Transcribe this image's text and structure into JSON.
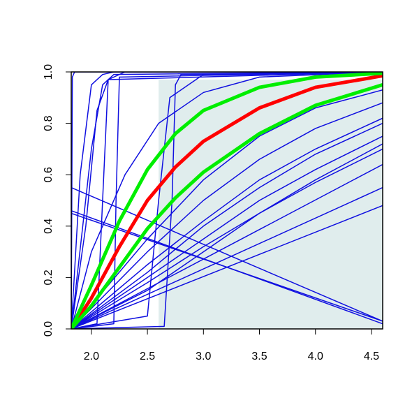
{
  "chart_data": {
    "type": "line",
    "xlim": [
      1.82,
      4.6
    ],
    "ylim": [
      0,
      1
    ],
    "xticks": [
      {
        "value": 2,
        "label": "2.0"
      },
      2.5,
      {
        "value": 3,
        "label": "3.0"
      },
      3.5,
      {
        "value": 4,
        "label": "4.0"
      },
      4.5
    ],
    "yticks": [
      {
        "value": 0,
        "label": "0.0"
      },
      0.2,
      0.4,
      0.6,
      0.8,
      {
        "value": 1,
        "label": "1.0"
      }
    ],
    "shaded_region": {
      "x": [
        2.6,
        4.6
      ],
      "y": [
        0,
        0.97
      ],
      "color": "#e0eded"
    },
    "series": [
      {
        "color": "#1010e0",
        "line_width": 1.5,
        "x": [
          1.82,
          1.83,
          1.85,
          4.6
        ],
        "values": [
          0,
          0.98,
          1,
          1
        ]
      },
      {
        "color": "#1010e0",
        "line_width": 1.5,
        "x": [
          1.82,
          1.9,
          2.0,
          2.1,
          2.2,
          4.6
        ],
        "values": [
          0,
          0.6,
          0.95,
          0.99,
          1,
          1
        ]
      },
      {
        "color": "#1010e0",
        "line_width": 1.5,
        "x": [
          1.82,
          1.95,
          2.05,
          2.15,
          2.3,
          4.6
        ],
        "values": [
          0,
          0.4,
          0.85,
          0.97,
          1,
          1
        ]
      },
      {
        "color": "#1010e0",
        "line_width": 1.5,
        "x": [
          1.82,
          2.2,
          2.22,
          2.25,
          4.6
        ],
        "values": [
          0,
          0.02,
          0.5,
          0.98,
          1
        ]
      },
      {
        "color": "#1010e0",
        "line_width": 1.5,
        "x": [
          1.82,
          2.65,
          2.72,
          2.75,
          2.8,
          4.6
        ],
        "values": [
          0,
          0.01,
          0.5,
          0.95,
          0.99,
          1
        ]
      },
      {
        "color": "#1010e0",
        "line_width": 1.5,
        "x": [
          1.82,
          2.5,
          2.6,
          2.7,
          3.0,
          4.6
        ],
        "values": [
          0,
          0.05,
          0.5,
          0.9,
          0.99,
          1
        ]
      },
      {
        "color": "#1010e0",
        "line_width": 1.5,
        "x": [
          1.82,
          2.0,
          2.3,
          2.6,
          3.0,
          3.5,
          4.6
        ],
        "values": [
          0,
          0.3,
          0.6,
          0.8,
          0.92,
          0.98,
          1
        ]
      },
      {
        "color": "#1010e0",
        "line_width": 1.5,
        "x": [
          1.82,
          4.6
        ],
        "values": [
          0.55,
          0.03
        ]
      },
      {
        "color": "#1010e0",
        "line_width": 1.5,
        "x": [
          1.82,
          4.6
        ],
        "values": [
          0.46,
          0.02
        ]
      },
      {
        "color": "#1010e0",
        "line_width": 1.5,
        "x": [
          1.82,
          4.6
        ],
        "values": [
          0.45,
          0.03
        ]
      },
      {
        "color": "#1010e0",
        "line_width": 1.5,
        "x": [
          1.82,
          4.6
        ],
        "values": [
          0,
          0.48
        ]
      },
      {
        "color": "#1010e0",
        "line_width": 1.5,
        "x": [
          1.82,
          4.6
        ],
        "values": [
          0,
          0.55
        ]
      },
      {
        "color": "#1010e0",
        "line_width": 1.5,
        "x": [
          1.82,
          4.6
        ],
        "values": [
          0,
          0.64
        ]
      },
      {
        "color": "#1010e0",
        "line_width": 1.5,
        "x": [
          1.82,
          2.5,
          3.0,
          3.5,
          4.0,
          4.6
        ],
        "values": [
          0,
          0.2,
          0.35,
          0.5,
          0.62,
          0.75
        ]
      },
      {
        "color": "#1010e0",
        "line_width": 1.5,
        "x": [
          1.82,
          2.5,
          3.0,
          3.5,
          4.0,
          4.6
        ],
        "values": [
          0,
          0.25,
          0.42,
          0.58,
          0.7,
          0.82
        ]
      },
      {
        "color": "#1010e0",
        "line_width": 1.5,
        "x": [
          1.82,
          2.5,
          3.0,
          3.5,
          4.0,
          4.6
        ],
        "values": [
          0,
          0.3,
          0.5,
          0.66,
          0.78,
          0.88
        ]
      },
      {
        "color": "#1010e0",
        "line_width": 1.5,
        "x": [
          1.82,
          2.5,
          3.0,
          3.5,
          4.0,
          4.6
        ],
        "values": [
          0,
          0.18,
          0.32,
          0.45,
          0.57,
          0.7
        ]
      },
      {
        "color": "#1010e0",
        "line_width": 1.5,
        "x": [
          1.82,
          2.5,
          3.0,
          3.5,
          4.0,
          4.6
        ],
        "values": [
          0,
          0.35,
          0.58,
          0.75,
          0.86,
          0.93
        ]
      },
      {
        "color": "#1010e0",
        "line_width": 1.5,
        "x": [
          1.82,
          2.5,
          3.0,
          3.5,
          4.0,
          4.6
        ],
        "values": [
          0,
          0.15,
          0.3,
          0.45,
          0.58,
          0.72
        ]
      },
      {
        "color": "#1010e0",
        "line_width": 1.5,
        "x": [
          1.82,
          2.5,
          3.0,
          3.5,
          4.0,
          4.6
        ],
        "values": [
          0,
          0.22,
          0.4,
          0.55,
          0.68,
          0.8
        ]
      },
      {
        "color": "#1010e0",
        "line_width": 1.5,
        "x": [
          1.82,
          2.0,
          2.1,
          2.2,
          4.6
        ],
        "values": [
          0,
          0.7,
          0.95,
          0.99,
          1
        ]
      },
      {
        "color": "#1010e0",
        "line_width": 1.5,
        "x": [
          1.82,
          2.05,
          2.1,
          2.15,
          4.6
        ],
        "values": [
          0,
          0.02,
          0.5,
          0.97,
          1
        ]
      },
      {
        "color": "#ff0000",
        "line_width": 5,
        "x": [
          1.82,
          2.0,
          2.25,
          2.5,
          2.75,
          3.0,
          3.5,
          4.0,
          4.6
        ],
        "values": [
          0,
          0.12,
          0.32,
          0.5,
          0.63,
          0.73,
          0.86,
          0.94,
          0.985
        ]
      },
      {
        "color": "#00ee00",
        "line_width": 5,
        "x": [
          1.82,
          2.0,
          2.25,
          2.5,
          2.75,
          3.0,
          3.5,
          4.0,
          4.6
        ],
        "values": [
          0,
          0.17,
          0.42,
          0.62,
          0.76,
          0.85,
          0.94,
          0.98,
          0.995
        ]
      },
      {
        "color": "#00ee00",
        "line_width": 5,
        "x": [
          1.82,
          2.0,
          2.25,
          2.5,
          2.75,
          3.0,
          3.5,
          4.0,
          4.6
        ],
        "values": [
          0,
          0.09,
          0.24,
          0.39,
          0.51,
          0.61,
          0.76,
          0.87,
          0.95
        ]
      }
    ]
  }
}
